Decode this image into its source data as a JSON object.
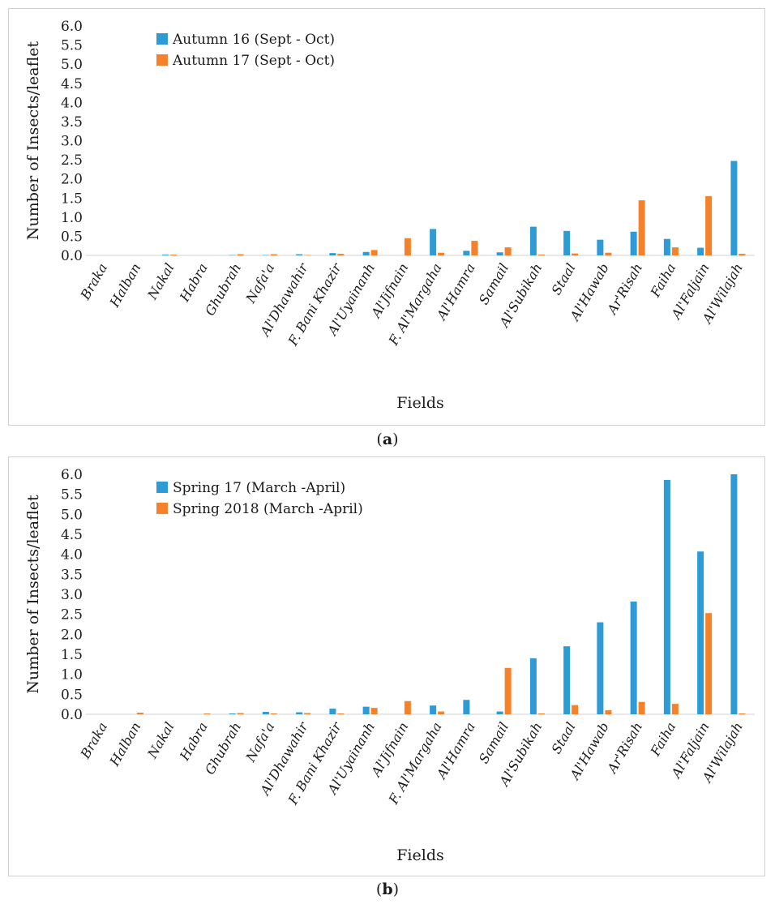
{
  "captions": {
    "a": "a",
    "b": "b"
  },
  "chart_data": [
    {
      "type": "bar",
      "title": "",
      "xlabel": "Fields",
      "ylabel": "Number of Insects/leaflet",
      "ylim": [
        0,
        6
      ],
      "yticks": [
        "0.0",
        "0.5",
        "1.0",
        "1.5",
        "2.0",
        "2.5",
        "3.0",
        "3.5",
        "4.0",
        "4.5",
        "5.0",
        "5.5",
        "6.0"
      ],
      "categories": [
        "Braka",
        "Halban",
        "Nakal",
        "Habra",
        "Ghubrah",
        "Nafa'a",
        "Al'Dhawahir",
        "F. Bani Khazir",
        "Al'Uyainanh",
        "Al'Jifnain",
        "F. Al'Margaha",
        "Al'Hamra",
        "Samail",
        "Al'Subikah",
        "Staal",
        "Al'Hawab",
        "Ar'Risah",
        "Faiha",
        "Al'Faljain",
        "Al'Wilajah"
      ],
      "legend_position": "top-left",
      "grid": false,
      "series": [
        {
          "name": "Autumn 16 (Sept - Oct)",
          "color": "#2e9bd6",
          "values": [
            0,
            0,
            0.02,
            0,
            0.01,
            0.01,
            0.03,
            0.06,
            0.09,
            0,
            0.69,
            0.12,
            0.08,
            0.75,
            0.64,
            0.41,
            0.62,
            0.43,
            0.2,
            2.47
          ]
        },
        {
          "name": "Autumn 17 (Sept - Oct)",
          "color": "#f5822a",
          "values": [
            0,
            0,
            0.02,
            0,
            0.03,
            0.03,
            0.01,
            0.04,
            0.14,
            0.45,
            0.07,
            0.38,
            0.21,
            0.02,
            0.05,
            0.07,
            1.44,
            0.21,
            1.55,
            0.04
          ]
        }
      ]
    },
    {
      "type": "bar",
      "title": "",
      "xlabel": "Fields",
      "ylabel": "Number of Insects/leaflet",
      "ylim": [
        0,
        6
      ],
      "yticks": [
        "0.0",
        "0.5",
        "1.0",
        "1.5",
        "2.0",
        "2.5",
        "3.0",
        "3.5",
        "4.0",
        "4.5",
        "5.0",
        "5.5",
        "6.0"
      ],
      "categories": [
        "Braka",
        "Halban",
        "Nakal",
        "Habra",
        "Ghubrah",
        "Nafa'a",
        "Al'Dhawahir",
        "F. Bani Khazir",
        "Al'Uyainanh",
        "Al'Jifnain",
        "F. Al'Margaha",
        "Al'Hamra",
        "Samail",
        "Al'Subikah",
        "Staal",
        "Al'Hawab",
        "Ar'Risah",
        "Faiha",
        "Al'Faljain",
        "Al'Wilajah"
      ],
      "legend_position": "top-left",
      "grid": false,
      "series": [
        {
          "name": "Spring 17 (March -April)",
          "color": "#2e9bd6",
          "values": [
            0,
            0,
            0,
            0,
            0.02,
            0.06,
            0.05,
            0.14,
            0.19,
            0,
            0.22,
            0.36,
            0.07,
            1.4,
            1.7,
            2.3,
            2.82,
            5.86,
            4.07,
            6.0
          ]
        },
        {
          "name": "Spring 2018 (March -April)",
          "color": "#f5822a",
          "values": [
            0,
            0.04,
            0,
            0.02,
            0.03,
            0.02,
            0.03,
            0.02,
            0.16,
            0.33,
            0.07,
            0,
            1.16,
            0.02,
            0.23,
            0.1,
            0.31,
            0.26,
            2.53,
            0.02
          ]
        }
      ]
    }
  ]
}
